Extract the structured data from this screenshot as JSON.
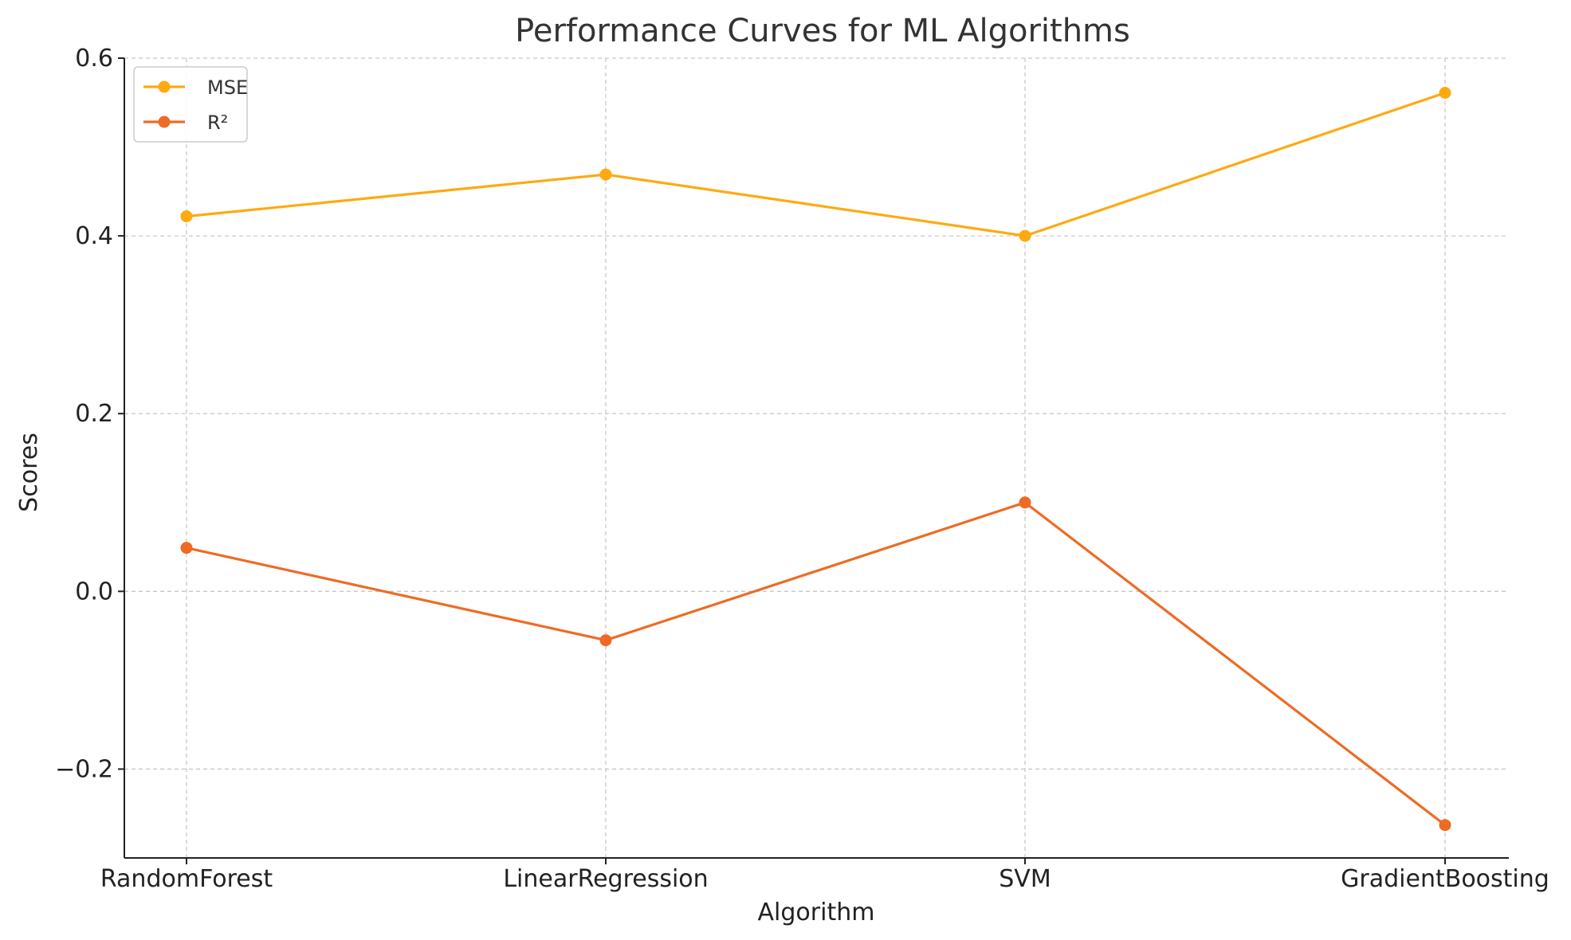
{
  "chart_data": {
    "type": "line",
    "title": "Performance Curves for ML Algorithms",
    "xlabel": "Algorithm",
    "ylabel": "Scores",
    "categories": [
      "RandomForest",
      "LinearRegression",
      "SVM",
      "GradientBoosting"
    ],
    "ylim": [
      -0.3,
      0.6
    ],
    "yticks": [
      -0.2,
      0.0,
      0.2,
      0.4,
      0.6
    ],
    "ytick_labels": [
      "−0.2",
      "0.0",
      "0.2",
      "0.4",
      "0.6"
    ],
    "grid": true,
    "legend_position": "upper-left",
    "series": [
      {
        "name": "MSE",
        "color": "#FDAA12",
        "values": [
          0.422,
          0.469,
          0.4,
          0.561
        ]
      },
      {
        "name": "R²",
        "color": "#EE6B25",
        "values": [
          0.049,
          -0.055,
          0.1,
          -0.263
        ]
      }
    ]
  }
}
